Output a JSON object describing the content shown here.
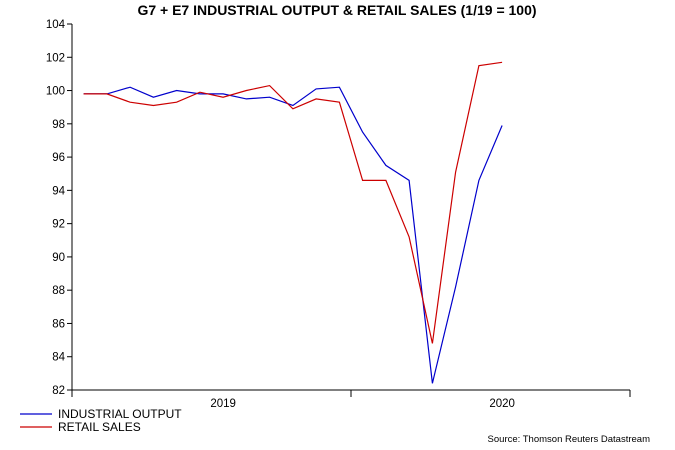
{
  "chart_data": {
    "type": "line",
    "title": "G7 + E7 INDUSTRIAL OUTPUT & RETAIL SALES (1/19 = 100)",
    "source": "Source: Thomson Reuters Datastream",
    "xlabel": "",
    "ylabel": "",
    "ylim": [
      82,
      104
    ],
    "yticks": [
      82,
      84,
      86,
      88,
      90,
      92,
      94,
      96,
      98,
      100,
      102,
      104
    ],
    "x": [
      "2019-01",
      "2019-02",
      "2019-03",
      "2019-04",
      "2019-05",
      "2019-06",
      "2019-07",
      "2019-08",
      "2019-09",
      "2019-10",
      "2019-11",
      "2019-12",
      "2020-01",
      "2020-02",
      "2020-03",
      "2020-04",
      "2020-05",
      "2020-06",
      "2020-07"
    ],
    "xlim": [
      "2019-01",
      "2020-12"
    ],
    "year_labels": [
      {
        "label": "2019",
        "x": "2019-07"
      },
      {
        "label": "2020",
        "x": "2020-07"
      }
    ],
    "grid": false,
    "legend": "bottom-left",
    "series": [
      {
        "name": "INDUSTRIAL OUTPUT",
        "color": "#0000cc",
        "values": [
          99.8,
          99.8,
          100.2,
          99.6,
          100.0,
          99.8,
          99.8,
          99.5,
          99.6,
          99.1,
          100.1,
          100.2,
          97.5,
          95.5,
          94.6,
          82.4,
          88.2,
          94.6,
          97.9
        ]
      },
      {
        "name": "RETAIL SALES",
        "color": "#cc0000",
        "values": [
          99.8,
          99.8,
          99.3,
          99.1,
          99.3,
          99.9,
          99.6,
          100.0,
          100.3,
          98.9,
          99.5,
          99.3,
          94.6,
          94.6,
          91.2,
          84.8,
          95.1,
          101.5,
          101.7
        ]
      }
    ]
  }
}
